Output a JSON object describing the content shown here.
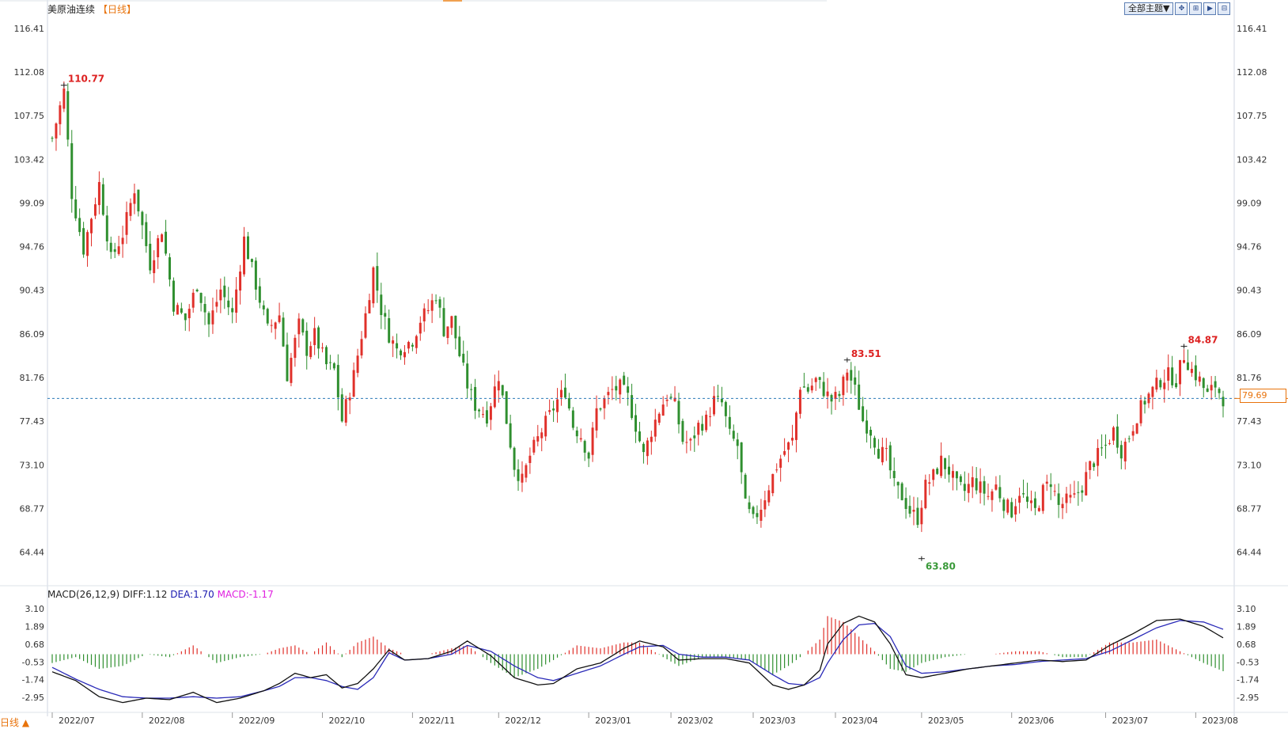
{
  "header": {
    "instrument": "美原油连续",
    "period_label": "【日线】",
    "theme_button": "全部主题▼",
    "toolbar_icons": [
      "move-icon",
      "zoom-in-icon",
      "zoom-out-icon",
      "fit-icon"
    ]
  },
  "macd": {
    "label": "MACD(26,12,9)",
    "diff_label": "DIFF:1.12",
    "dea_label": "DEA:1.70",
    "macd_label": "MACD:-1.17"
  },
  "footer": {
    "period_button": "日线 ▲"
  },
  "current_price": "79.69",
  "chart_data": [
    {
      "type": "candlestick",
      "title": "美原油连续",
      "y_ticks": [
        "116.41",
        "112.08",
        "107.75",
        "103.42",
        "99.09",
        "94.76",
        "90.43",
        "86.09",
        "81.76",
        "77.43",
        "73.10",
        "68.77",
        "64.44"
      ],
      "x_ticks": [
        "2022/07",
        "2022/08",
        "2022/09",
        "2022/10",
        "2022/11",
        "2022/12",
        "2023/01",
        "2023/02",
        "2023/03",
        "2023/04",
        "2023/05",
        "2023/06",
        "2023/07",
        "2023/08"
      ],
      "ylim": [
        61.5,
        117.5
      ],
      "current_price": 79.69,
      "annotations": [
        {
          "label": "110.77",
          "date": "2022/07",
          "value": 110.77,
          "kind": "high"
        },
        {
          "label": "83.51",
          "date": "2023/04",
          "value": 83.51,
          "kind": "high"
        },
        {
          "label": "63.80",
          "date": "2023/05",
          "value": 63.8,
          "kind": "low"
        },
        {
          "label": "84.87",
          "date": "2023/08",
          "value": 84.87,
          "kind": "high"
        }
      ],
      "close_path": [
        [
          0,
          105.5
        ],
        [
          3,
          110.2
        ],
        [
          5,
          100
        ],
        [
          8,
          94.5
        ],
        [
          12,
          101
        ],
        [
          15,
          93.5
        ],
        [
          18,
          96
        ],
        [
          21,
          100.5
        ],
        [
          25,
          93
        ],
        [
          28,
          96.5
        ],
        [
          31,
          89
        ],
        [
          34,
          87.5
        ],
        [
          37,
          91
        ],
        [
          40,
          87
        ],
        [
          43,
          90.5
        ],
        [
          46,
          88
        ],
        [
          49,
          95.5
        ],
        [
          52,
          91
        ],
        [
          55,
          86.5
        ],
        [
          58,
          88
        ],
        [
          60,
          82
        ],
        [
          63,
          87
        ],
        [
          65,
          84.5
        ],
        [
          67,
          86
        ],
        [
          70,
          83
        ],
        [
          72,
          82.5
        ],
        [
          74,
          77.5
        ],
        [
          77,
          82
        ],
        [
          80,
          88
        ],
        [
          82,
          92.5
        ],
        [
          84,
          88.5
        ],
        [
          86,
          86
        ],
        [
          88,
          84.5
        ],
        [
          90,
          85
        ],
        [
          92,
          85.5
        ],
        [
          94,
          87.5
        ],
        [
          96,
          88.5
        ],
        [
          98,
          90
        ],
        [
          100,
          86.5
        ],
        [
          102,
          87.5
        ],
        [
          104,
          84
        ],
        [
          106,
          81
        ],
        [
          108,
          79
        ],
        [
          111,
          78
        ],
        [
          114,
          82
        ],
        [
          116,
          77.5
        ],
        [
          118,
          73
        ],
        [
          120,
          71.5
        ],
        [
          122,
          74
        ],
        [
          125,
          76.5
        ],
        [
          127,
          78
        ],
        [
          129,
          79.5
        ],
        [
          131,
          80.5
        ],
        [
          133,
          77
        ],
        [
          135,
          76
        ],
        [
          137,
          74
        ],
        [
          139,
          78.5
        ],
        [
          141,
          79.5
        ],
        [
          143,
          80.5
        ],
        [
          145,
          80.8
        ],
        [
          147,
          79.8
        ],
        [
          149,
          77
        ],
        [
          151,
          74
        ],
        [
          153,
          76.5
        ],
        [
          155,
          78.5
        ],
        [
          157,
          80
        ],
        [
          159,
          79
        ],
        [
          161,
          75.5
        ],
        [
          163,
          75.2
        ],
        [
          165,
          77
        ],
        [
          167,
          77.5
        ],
        [
          169,
          79.5
        ],
        [
          171,
          79.2
        ],
        [
          173,
          76
        ],
        [
          175,
          75
        ],
        [
          177,
          69
        ],
        [
          179,
          67.5
        ],
        [
          181,
          69
        ],
        [
          183,
          71
        ],
        [
          185,
          73
        ],
        [
          187,
          74.5
        ],
        [
          189,
          75.5
        ],
        [
          191,
          81
        ],
        [
          193,
          80.5
        ],
        [
          195,
          81.5
        ],
        [
          197,
          80.5
        ],
        [
          199,
          79.5
        ],
        [
          201,
          80
        ],
        [
          203,
          82.5
        ],
        [
          205,
          80.5
        ],
        [
          207,
          77.5
        ],
        [
          209,
          76.5
        ],
        [
          211,
          74.5
        ],
        [
          213,
          74
        ],
        [
          215,
          71
        ],
        [
          217,
          70
        ],
        [
          219,
          68.5
        ],
        [
          221,
          67.8
        ],
        [
          223,
          71
        ],
        [
          225,
          72
        ],
        [
          227,
          73.5
        ],
        [
          229,
          72.5
        ],
        [
          231,
          71
        ],
        [
          233,
          70.5
        ],
        [
          235,
          71.5
        ],
        [
          237,
          70.8
        ],
        [
          239,
          70
        ],
        [
          241,
          71
        ],
        [
          243,
          69.3
        ],
        [
          245,
          68.5
        ],
        [
          247,
          70.5
        ],
        [
          249,
          69.2
        ],
        [
          251,
          68.5
        ],
        [
          253,
          70.5
        ],
        [
          255,
          71.5
        ],
        [
          257,
          69
        ],
        [
          259,
          69.5
        ],
        [
          261,
          69.8
        ],
        [
          263,
          71
        ],
        [
          265,
          73
        ],
        [
          267,
          74
        ],
        [
          269,
          75
        ],
        [
          271,
          76.5
        ],
        [
          273,
          74.5
        ],
        [
          275,
          76
        ],
        [
          277,
          78
        ],
        [
          279,
          79.5
        ],
        [
          281,
          80.5
        ],
        [
          283,
          81.5
        ],
        [
          285,
          82
        ],
        [
          287,
          81.5
        ],
        [
          289,
          84
        ],
        [
          291,
          82.5
        ],
        [
          293,
          81.5
        ],
        [
          295,
          80
        ],
        [
          297,
          81
        ],
        [
          299,
          79.69
        ]
      ],
      "macd_ylim": [
        -3.7,
        3.7
      ],
      "macd_y_ticks": [
        "3.10",
        "1.89",
        "0.68",
        "-0.53",
        "-1.74",
        "-2.95"
      ],
      "diff_path": [
        [
          0,
          -1.2
        ],
        [
          6,
          -1.8
        ],
        [
          12,
          -2.9
        ],
        [
          18,
          -3.3
        ],
        [
          24,
          -3.0
        ],
        [
          30,
          -3.1
        ],
        [
          36,
          -2.6
        ],
        [
          42,
          -3.3
        ],
        [
          48,
          -3.0
        ],
        [
          54,
          -2.5
        ],
        [
          58,
          -2.0
        ],
        [
          62,
          -1.3
        ],
        [
          66,
          -1.6
        ],
        [
          70,
          -1.4
        ],
        [
          74,
          -2.3
        ],
        [
          78,
          -2.0
        ],
        [
          82,
          -1.0
        ],
        [
          86,
          0.3
        ],
        [
          90,
          -0.4
        ],
        [
          96,
          -0.3
        ],
        [
          102,
          0.2
        ],
        [
          106,
          0.9
        ],
        [
          112,
          -0.1
        ],
        [
          118,
          -1.6
        ],
        [
          124,
          -2.1
        ],
        [
          128,
          -2.0
        ],
        [
          134,
          -1.0
        ],
        [
          140,
          -0.6
        ],
        [
          146,
          0.4
        ],
        [
          150,
          0.9
        ],
        [
          156,
          0.5
        ],
        [
          160,
          -0.4
        ],
        [
          166,
          -0.3
        ],
        [
          172,
          -0.3
        ],
        [
          178,
          -0.6
        ],
        [
          184,
          -2.1
        ],
        [
          188,
          -2.4
        ],
        [
          192,
          -2.1
        ],
        [
          196,
          -1.1
        ],
        [
          198,
          0.7
        ],
        [
          202,
          2.1
        ],
        [
          206,
          2.6
        ],
        [
          210,
          2.2
        ],
        [
          214,
          0.7
        ],
        [
          218,
          -1.4
        ],
        [
          222,
          -1.6
        ],
        [
          228,
          -1.3
        ],
        [
          234,
          -1.0
        ],
        [
          240,
          -0.8
        ],
        [
          246,
          -0.6
        ],
        [
          252,
          -0.4
        ],
        [
          258,
          -0.5
        ],
        [
          264,
          -0.4
        ],
        [
          270,
          0.6
        ],
        [
          276,
          1.4
        ],
        [
          282,
          2.3
        ],
        [
          288,
          2.4
        ],
        [
          294,
          1.9
        ],
        [
          299,
          1.12
        ]
      ],
      "dea_path": [
        [
          0,
          -0.9
        ],
        [
          6,
          -1.7
        ],
        [
          12,
          -2.4
        ],
        [
          18,
          -2.9
        ],
        [
          24,
          -3.0
        ],
        [
          30,
          -3.0
        ],
        [
          36,
          -2.9
        ],
        [
          42,
          -3.0
        ],
        [
          48,
          -2.9
        ],
        [
          54,
          -2.5
        ],
        [
          58,
          -2.2
        ],
        [
          62,
          -1.6
        ],
        [
          66,
          -1.6
        ],
        [
          70,
          -1.8
        ],
        [
          74,
          -2.2
        ],
        [
          78,
          -2.4
        ],
        [
          82,
          -1.6
        ],
        [
          86,
          0.1
        ],
        [
          90,
          -0.4
        ],
        [
          96,
          -0.3
        ],
        [
          102,
          0.0
        ],
        [
          106,
          0.6
        ],
        [
          112,
          0.2
        ],
        [
          118,
          -0.8
        ],
        [
          124,
          -1.6
        ],
        [
          128,
          -1.8
        ],
        [
          134,
          -1.3
        ],
        [
          140,
          -0.8
        ],
        [
          146,
          0.0
        ],
        [
          150,
          0.5
        ],
        [
          156,
          0.6
        ],
        [
          160,
          0.0
        ],
        [
          166,
          -0.2
        ],
        [
          172,
          -0.2
        ],
        [
          178,
          -0.4
        ],
        [
          184,
          -1.4
        ],
        [
          188,
          -2.0
        ],
        [
          192,
          -2.1
        ],
        [
          196,
          -1.6
        ],
        [
          198,
          -0.6
        ],
        [
          202,
          1.0
        ],
        [
          206,
          2.0
        ],
        [
          210,
          2.1
        ],
        [
          214,
          1.2
        ],
        [
          218,
          -0.8
        ],
        [
          222,
          -1.3
        ],
        [
          228,
          -1.2
        ],
        [
          234,
          -1.0
        ],
        [
          240,
          -0.8
        ],
        [
          246,
          -0.7
        ],
        [
          252,
          -0.5
        ],
        [
          258,
          -0.4
        ],
        [
          264,
          -0.3
        ],
        [
          270,
          0.2
        ],
        [
          276,
          1.0
        ],
        [
          282,
          1.8
        ],
        [
          288,
          2.3
        ],
        [
          294,
          2.2
        ],
        [
          299,
          1.7
        ]
      ]
    }
  ]
}
